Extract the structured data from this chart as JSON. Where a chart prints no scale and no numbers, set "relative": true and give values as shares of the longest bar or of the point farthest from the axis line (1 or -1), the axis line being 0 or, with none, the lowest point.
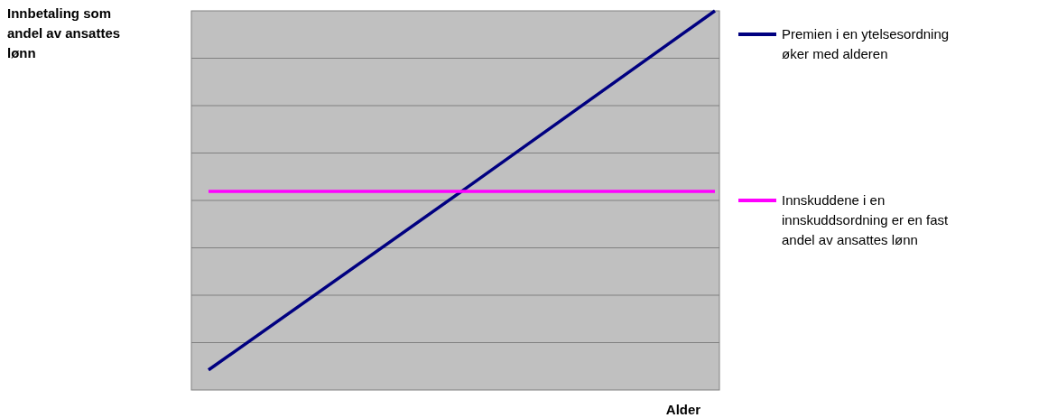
{
  "chart_data": {
    "type": "line",
    "relative": true,
    "annotations": [
      "Innbetaling som andel av ansattes lønn"
    ],
    "xlabel": "Alder",
    "categories": [
      null,
      null,
      null
    ],
    "series": [
      {
        "name": "Premien i en ytelsesordning øker med alderen",
        "color": "#000080",
        "values": [
          0.053,
          0.524,
          1
        ]
      },
      {
        "name": "Innskuddene i en innskuddsordning er en fast andel av ansattes lønn",
        "color": "#ff00ff",
        "values": [
          0.524,
          0.524,
          0.524
        ]
      }
    ],
    "grid": true,
    "legend": "right",
    "line_style": "solid",
    "marker": "none"
  }
}
